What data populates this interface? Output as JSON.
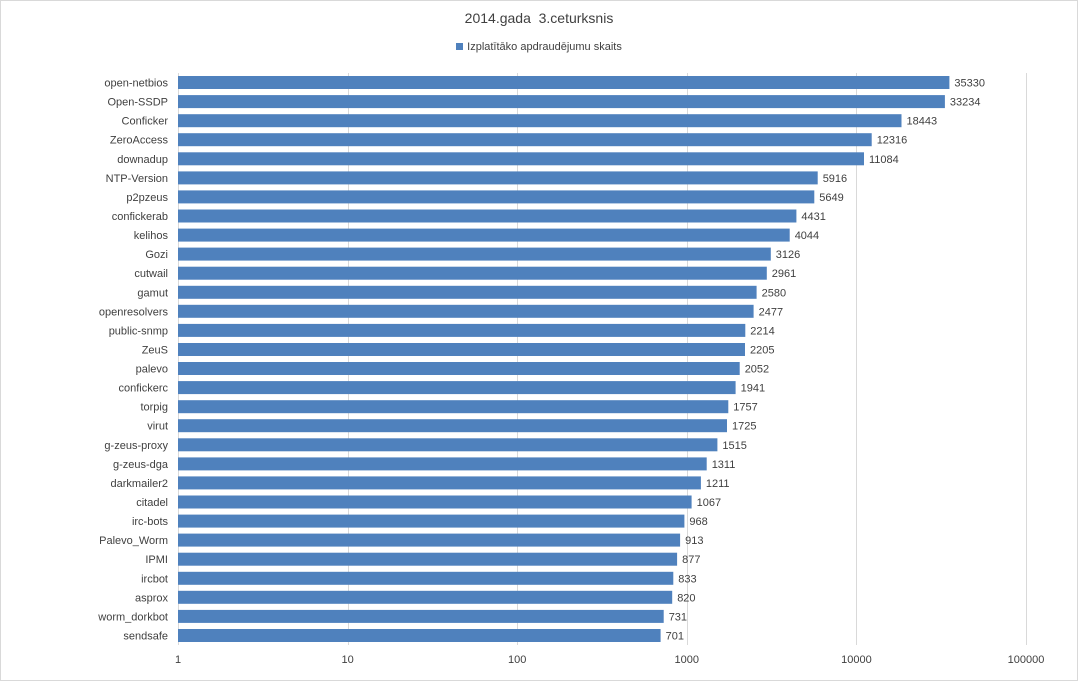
{
  "chart_data": {
    "type": "bar",
    "orientation": "horizontal",
    "title": "2014.gada  3.ceturksnis",
    "x_scale": "log",
    "xlim": [
      1,
      100000
    ],
    "x_ticks": [
      "1",
      "10",
      "100",
      "1000",
      "10000",
      "100000"
    ],
    "x_tick_values": [
      1,
      10,
      100,
      1000,
      10000,
      100000
    ],
    "grid": "vertical",
    "legend_position": "top",
    "bar_color": "#4f81bd",
    "grid_color": "#d9d9d9",
    "categories": [
      "open-netbios",
      "Open-SSDP",
      "Conficker",
      "ZeroAccess",
      "downadup",
      "NTP-Version",
      "p2pzeus",
      "confickerab",
      "kelihos",
      "Gozi",
      "cutwail",
      "gamut",
      "openresolvers",
      "public-snmp",
      "ZeuS",
      "palevo",
      "confickerc",
      "torpig",
      "virut",
      "g-zeus-proxy",
      "g-zeus-dga",
      "darkmailer2",
      "citadel",
      "irc-bots",
      "Palevo_Worm",
      "IPMI",
      "ircbot",
      "asprox",
      "worm_dorkbot",
      "sendsafe"
    ],
    "series": [
      {
        "name": "Izplatītāko apdraudējumu skaits",
        "values": [
          35330,
          33234,
          18443,
          12316,
          11084,
          5916,
          5649,
          4431,
          4044,
          3126,
          2961,
          2580,
          2477,
          2214,
          2205,
          2052,
          1941,
          1757,
          1725,
          1515,
          1311,
          1211,
          1067,
          968,
          913,
          877,
          833,
          820,
          731,
          701
        ]
      }
    ]
  }
}
